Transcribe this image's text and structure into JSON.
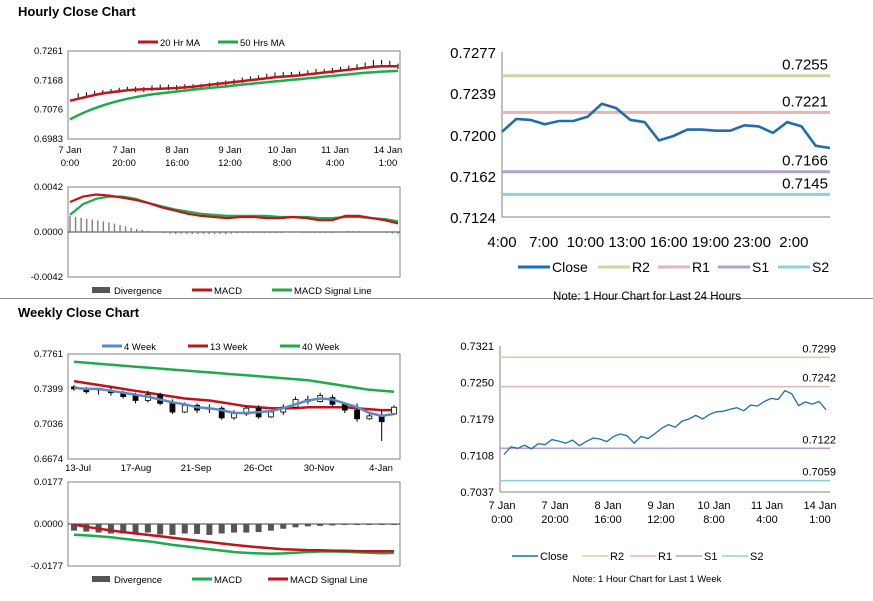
{
  "sections": {
    "hourly_title": "Hourly Close Chart",
    "weekly_title": "Weekly Close Chart"
  },
  "colors": {
    "red": "#c0141c",
    "green": "#1faa4b",
    "blue": "#5a8ac6",
    "gray": "#808080",
    "close_blue": "#1f6cae",
    "r2": "#c6d9a0",
    "r1": "#e6b5b5",
    "s1": "#b3a2c7",
    "s2": "#8fd0dc"
  },
  "chart_data": [
    {
      "id": "hourly_price",
      "type": "line",
      "legend": [
        "20 Hr MA",
        "50 Hrs MA"
      ],
      "yticks": [
        "0.7261",
        "0.7168",
        "0.7076",
        "0.6983"
      ],
      "ylim": [
        0.6983,
        0.7261
      ],
      "xticks": [
        [
          "7 Jan",
          "0:00"
        ],
        [
          "7 Jan",
          "20:00"
        ],
        [
          "8 Jan",
          "16:00"
        ],
        [
          "9 Jan",
          "12:00"
        ],
        [
          "10 Jan",
          "8:00"
        ],
        [
          "11 Jan",
          "4:00"
        ],
        [
          "14 Jan",
          "1:00"
        ]
      ],
      "close": [
        0.7118,
        0.7121,
        0.7125,
        0.7129,
        0.7132,
        0.7135,
        0.7139,
        0.7142,
        0.7137,
        0.7141,
        0.7146,
        0.7149,
        0.7143,
        0.7147,
        0.715,
        0.7146,
        0.7151,
        0.7155,
        0.7158,
        0.7162,
        0.7166,
        0.7171,
        0.7175,
        0.7178,
        0.7183,
        0.7187,
        0.7189,
        0.7186,
        0.719,
        0.7194,
        0.7198,
        0.7196,
        0.7201,
        0.7205,
        0.7209,
        0.7213,
        0.7219,
        0.7227,
        0.7224,
        0.7215,
        0.721
      ],
      "ma20": [
        0.7104,
        0.711,
        0.7116,
        0.7122,
        0.7127,
        0.7131,
        0.7134,
        0.7137,
        0.7139,
        0.714,
        0.7141,
        0.7142,
        0.7143,
        0.7144,
        0.7146,
        0.7148,
        0.7151,
        0.7154,
        0.7157,
        0.716,
        0.7163,
        0.7166,
        0.7169,
        0.7172,
        0.7175,
        0.7178,
        0.718,
        0.7182,
        0.7184,
        0.7187,
        0.719,
        0.7193,
        0.7196,
        0.7199,
        0.7202,
        0.7205,
        0.7208,
        0.7211,
        0.7213,
        0.7213,
        0.7213
      ],
      "ma50": [
        0.7045,
        0.7058,
        0.707,
        0.708,
        0.7089,
        0.7097,
        0.7104,
        0.711,
        0.7115,
        0.712,
        0.7124,
        0.7127,
        0.713,
        0.7133,
        0.7136,
        0.7139,
        0.7142,
        0.7144,
        0.7147,
        0.7149,
        0.7152,
        0.7155,
        0.7157,
        0.716,
        0.7162,
        0.7165,
        0.7167,
        0.717,
        0.7172,
        0.7175,
        0.7177,
        0.718,
        0.7182,
        0.7185,
        0.7187,
        0.719,
        0.7192,
        0.7194,
        0.7196,
        0.7197,
        0.7198
      ]
    },
    {
      "id": "hourly_macd",
      "type": "bar+line",
      "legend": [
        "Divergence",
        "MACD",
        "MACD Signal Line"
      ],
      "yticks": [
        "0.0042",
        "0.0000",
        "-0.0042"
      ],
      "ylim": [
        -0.0042,
        0.0042
      ],
      "macd": [
        0.0028,
        0.0033,
        0.0035,
        0.0034,
        0.0032,
        0.003,
        0.0027,
        0.0023,
        0.002,
        0.0017,
        0.0015,
        0.0014,
        0.0013,
        0.0014,
        0.0014,
        0.0013,
        0.0013,
        0.0014,
        0.0013,
        0.0011,
        0.0011,
        0.0015,
        0.0015,
        0.0013,
        0.0011,
        0.0008
      ],
      "signal": [
        0.0016,
        0.0026,
        0.0031,
        0.0033,
        0.0033,
        0.0031,
        0.0027,
        0.0024,
        0.0021,
        0.0019,
        0.0017,
        0.0016,
        0.0015,
        0.0015,
        0.0015,
        0.0015,
        0.0014,
        0.0014,
        0.0014,
        0.0013,
        0.0013,
        0.0014,
        0.0014,
        0.0013,
        0.0012,
        0.001
      ],
      "divergence": [
        0.0015,
        0.0013,
        0.0011,
        0.0009,
        0.0006,
        0.0003,
        0.0001,
        -0.0001,
        -0.0002,
        -0.0002,
        -0.0002,
        -0.0002,
        -0.0002,
        -0.0001,
        -0.0001,
        -0.0001,
        -0.0001,
        0.0,
        -0.0001,
        -0.0001,
        -0.0001,
        0.0001,
        0.0001,
        0.0,
        -0.0001,
        -0.0002
      ]
    },
    {
      "id": "hourly_levels",
      "type": "line",
      "yticks": [
        "0.7277",
        "0.7239",
        "0.7200",
        "0.7162",
        "0.7124"
      ],
      "ylim": [
        0.7124,
        0.7277
      ],
      "xticks": [
        "4:00",
        "7:00",
        "10:00",
        "13:00",
        "16:00",
        "19:00",
        "23:00",
        "2:00"
      ],
      "levels": [
        {
          "name": "R2",
          "value": 0.7255,
          "label": "0.7255"
        },
        {
          "name": "R1",
          "value": 0.7221,
          "label": "0.7221"
        },
        {
          "name": "S1",
          "value": 0.7166,
          "label": "0.7166"
        },
        {
          "name": "S2",
          "value": 0.7145,
          "label": "0.7145"
        }
      ],
      "close": [
        0.7203,
        0.7215,
        0.7214,
        0.721,
        0.7213,
        0.7213,
        0.7217,
        0.7229,
        0.7225,
        0.7214,
        0.7212,
        0.7195,
        0.7199,
        0.7205,
        0.7205,
        0.7204,
        0.7204,
        0.7209,
        0.7208,
        0.7202,
        0.7212,
        0.7208,
        0.719,
        0.7188
      ],
      "legend": [
        "Close",
        "R2",
        "R1",
        "S1",
        "S2"
      ],
      "note": "Note: 1 Hour Chart for Last 24 Hours"
    },
    {
      "id": "weekly_price",
      "type": "candlestick+line",
      "legend": [
        "4 Week",
        "13 Week",
        "40 Week"
      ],
      "yticks": [
        "0.7761",
        "0.7399",
        "0.7036",
        "0.6674"
      ],
      "ylim": [
        0.6674,
        0.7761
      ],
      "xticks": [
        "13-Jul",
        "17-Aug",
        "21-Sep",
        "26-Oct",
        "30-Nov",
        "4-Jan"
      ],
      "ohlc": [
        [
          0.742,
          0.744,
          0.738,
          0.74
        ],
        [
          0.74,
          0.742,
          0.735,
          0.737
        ],
        [
          0.739,
          0.741,
          0.734,
          0.74
        ],
        [
          0.738,
          0.742,
          0.733,
          0.736
        ],
        [
          0.736,
          0.738,
          0.73,
          0.732
        ],
        [
          0.733,
          0.736,
          0.725,
          0.728
        ],
        [
          0.728,
          0.738,
          0.726,
          0.734
        ],
        [
          0.734,
          0.736,
          0.723,
          0.725
        ],
        [
          0.725,
          0.729,
          0.714,
          0.716
        ],
        [
          0.716,
          0.726,
          0.715,
          0.723
        ],
        [
          0.723,
          0.725,
          0.715,
          0.718
        ],
        [
          0.719,
          0.724,
          0.715,
          0.72
        ],
        [
          0.72,
          0.722,
          0.708,
          0.71
        ],
        [
          0.71,
          0.718,
          0.708,
          0.715
        ],
        [
          0.714,
          0.722,
          0.712,
          0.72
        ],
        [
          0.72,
          0.723,
          0.709,
          0.711
        ],
        [
          0.711,
          0.718,
          0.71,
          0.716
        ],
        [
          0.716,
          0.724,
          0.713,
          0.721
        ],
        [
          0.721,
          0.732,
          0.72,
          0.729
        ],
        [
          0.729,
          0.733,
          0.724,
          0.727
        ],
        [
          0.727,
          0.736,
          0.726,
          0.733
        ],
        [
          0.731,
          0.734,
          0.722,
          0.724
        ],
        [
          0.724,
          0.726,
          0.715,
          0.718
        ],
        [
          0.718,
          0.725,
          0.706,
          0.709
        ],
        [
          0.709,
          0.716,
          0.708,
          0.712
        ],
        [
          0.712,
          0.718,
          0.686,
          0.706
        ],
        [
          0.714,
          0.723,
          0.713,
          0.721
        ]
      ],
      "ma4": [
        0.741,
        0.74,
        0.74,
        0.738,
        0.736,
        0.734,
        0.732,
        0.729,
        0.726,
        0.724,
        0.721,
        0.72,
        0.718,
        0.715,
        0.715,
        0.716,
        0.717,
        0.72,
        0.724,
        0.728,
        0.73,
        0.729,
        0.725,
        0.721,
        0.715,
        0.712,
        0.714
      ],
      "ma13": [
        0.748,
        0.746,
        0.744,
        0.742,
        0.74,
        0.738,
        0.736,
        0.734,
        0.732,
        0.73,
        0.729,
        0.728,
        0.726,
        0.724,
        0.722,
        0.721,
        0.72,
        0.72,
        0.72,
        0.721,
        0.721,
        0.721,
        0.721,
        0.72,
        0.719,
        0.718,
        0.718
      ],
      "ma40": [
        0.768,
        0.767,
        0.766,
        0.765,
        0.764,
        0.763,
        0.762,
        0.761,
        0.76,
        0.759,
        0.758,
        0.757,
        0.756,
        0.755,
        0.754,
        0.753,
        0.752,
        0.751,
        0.75,
        0.749,
        0.747,
        0.745,
        0.743,
        0.741,
        0.739,
        0.738,
        0.737
      ]
    },
    {
      "id": "weekly_macd",
      "type": "bar+line",
      "legend": [
        "Divergence",
        "MACD",
        "MACD Signal Line"
      ],
      "yticks": [
        "0.0177",
        "0.0000",
        "-0.0177"
      ],
      "ylim": [
        -0.0177,
        0.0177
      ],
      "macd": [
        -0.0045,
        -0.0048,
        -0.0052,
        -0.0056,
        -0.0062,
        -0.0068,
        -0.0073,
        -0.008,
        -0.0088,
        -0.0094,
        -0.01,
        -0.0106,
        -0.0112,
        -0.0118,
        -0.0122,
        -0.0124,
        -0.0125,
        -0.0124,
        -0.0121,
        -0.0118,
        -0.0116,
        -0.0116,
        -0.0117,
        -0.0119,
        -0.0121,
        -0.0123,
        -0.0122
      ],
      "signal": [
        -0.0002,
        -0.0012,
        -0.002,
        -0.0027,
        -0.0034,
        -0.004,
        -0.0046,
        -0.0052,
        -0.0058,
        -0.0064,
        -0.007,
        -0.0076,
        -0.0082,
        -0.0088,
        -0.0093,
        -0.0098,
        -0.0102,
        -0.0106,
        -0.0108,
        -0.011,
        -0.0111,
        -0.0112,
        -0.0113,
        -0.0114,
        -0.0115,
        -0.0115,
        -0.0115
      ],
      "divergence": [
        -0.0028,
        -0.0032,
        -0.0036,
        -0.004,
        -0.004,
        -0.0038,
        -0.0036,
        -0.0044,
        -0.0046,
        -0.004,
        -0.0042,
        -0.0046,
        -0.004,
        -0.0036,
        -0.0036,
        -0.0034,
        -0.0028,
        -0.002,
        -0.0014,
        -0.001,
        -0.0008,
        -0.0006,
        -0.0004,
        -0.0004,
        -0.0004,
        -0.0004,
        -0.0004
      ]
    },
    {
      "id": "weekly_levels",
      "type": "line",
      "yticks": [
        "0.7321",
        "0.7250",
        "0.7179",
        "0.7108",
        "0.7037"
      ],
      "ylim": [
        0.7037,
        0.7321
      ],
      "xticks": [
        [
          "7 Jan",
          "0:00"
        ],
        [
          "7 Jan",
          "20:00"
        ],
        [
          "8 Jan",
          "16:00"
        ],
        [
          "9 Jan",
          "12:00"
        ],
        [
          "10 Jan",
          "8:00"
        ],
        [
          "11 Jan",
          "4:00"
        ],
        [
          "14 Jan",
          "1:00"
        ]
      ],
      "levels": [
        {
          "name": "R2",
          "value": 0.7299,
          "label": "0.7299"
        },
        {
          "name": "R1",
          "value": 0.7242,
          "label": "0.7242"
        },
        {
          "name": "S1",
          "value": 0.7122,
          "label": "0.7122"
        },
        {
          "name": "S2",
          "value": 0.7059,
          "label": "0.7059"
        }
      ],
      "close": [
        0.711,
        0.7125,
        0.7122,
        0.7128,
        0.7121,
        0.7131,
        0.7129,
        0.7139,
        0.7136,
        0.7132,
        0.7138,
        0.7127,
        0.7135,
        0.7142,
        0.714,
        0.7135,
        0.7145,
        0.715,
        0.7146,
        0.7132,
        0.7145,
        0.7141,
        0.715,
        0.7161,
        0.7168,
        0.7163,
        0.7175,
        0.7179,
        0.7186,
        0.7179,
        0.7188,
        0.7193,
        0.7194,
        0.7198,
        0.7201,
        0.7195,
        0.7206,
        0.7204,
        0.7213,
        0.7219,
        0.7217,
        0.7234,
        0.7228,
        0.7205,
        0.7212,
        0.7208,
        0.7213,
        0.7197
      ],
      "legend": [
        "Close",
        "R2",
        "R1",
        "S1",
        "S2"
      ],
      "note": "Note: 1 Hour Chart for Last 1 Week"
    }
  ]
}
